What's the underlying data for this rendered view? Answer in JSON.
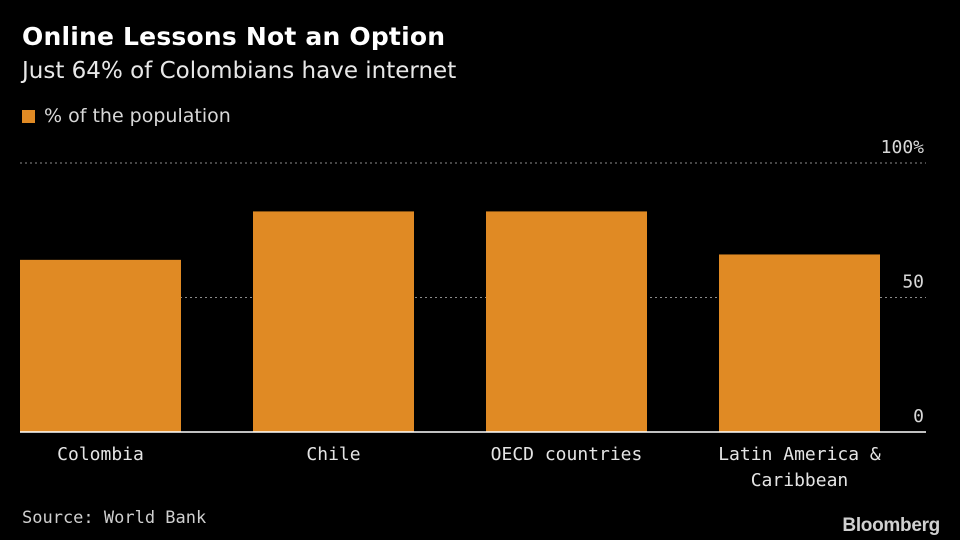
{
  "chart_data": {
    "type": "bar",
    "title": "Online Lessons Not an Option",
    "subtitle": "Just 64% of Colombians have internet",
    "legend": {
      "label": "% of the population",
      "color": "#e08a24",
      "placement": "top-left"
    },
    "categories": [
      [
        "Colombia"
      ],
      [
        "Chile"
      ],
      [
        "OECD countries"
      ],
      [
        "Latin America &",
        "Caribbean"
      ]
    ],
    "series": [
      {
        "name": "% of the population",
        "values": [
          64,
          82,
          82,
          66
        ]
      }
    ],
    "y_ticks": [
      {
        "value": 0,
        "label": "0"
      },
      {
        "value": 50,
        "label": "50"
      },
      {
        "value": 100,
        "label": "100%"
      }
    ],
    "ylim": [
      0,
      100
    ],
    "xlabel": "",
    "ylabel": "",
    "grid": true
  },
  "footer": {
    "source": "Source: World Bank",
    "brand": "Bloomberg"
  },
  "colors": {
    "background": "#000000",
    "bar": "#e08a24",
    "grid": "#8c8c8c",
    "axis": "#ffffff"
  }
}
